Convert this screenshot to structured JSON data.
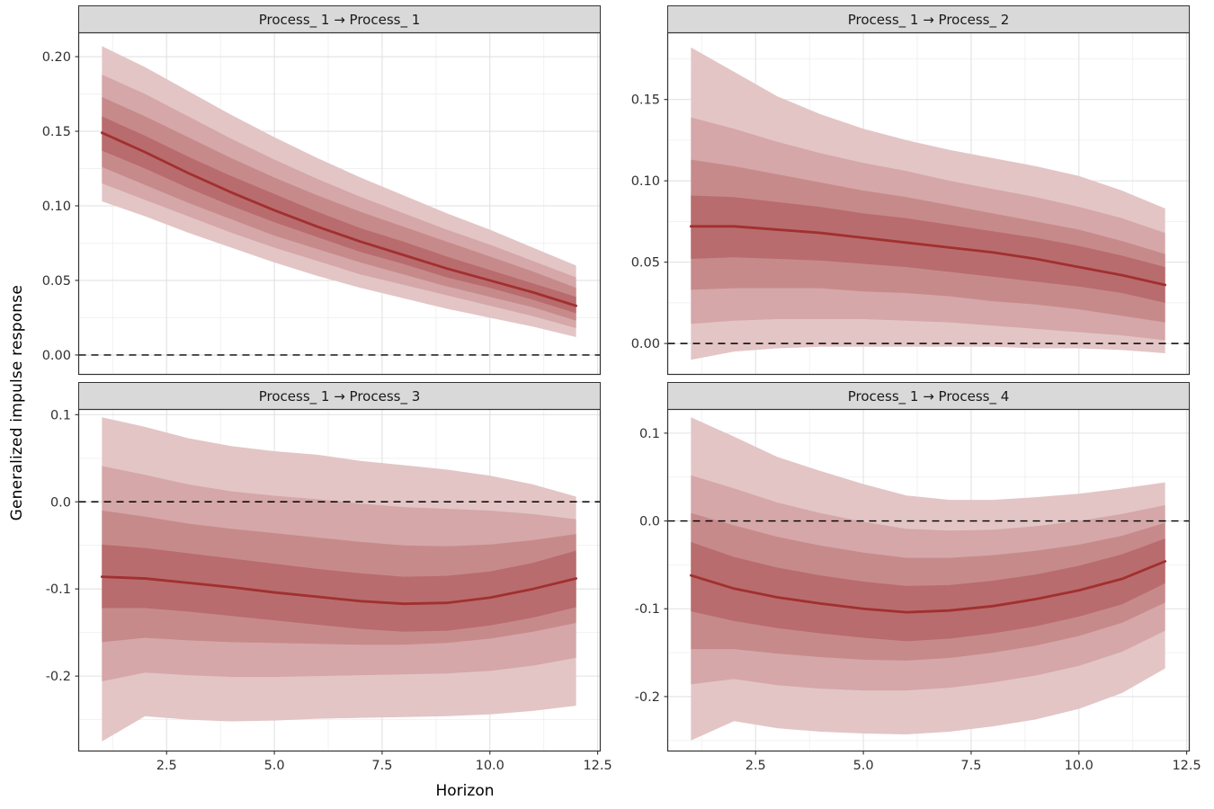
{
  "figure": {
    "xlabel": "Horizon",
    "ylabel": "Generalized impulse response",
    "xlim": [
      0.45,
      12.55
    ],
    "x_ticks": [
      2.5,
      5,
      7.5,
      10,
      12.5
    ],
    "x_tick_labels": [
      "2.5",
      "5.0",
      "7.5",
      "10.0",
      "12.5"
    ]
  },
  "colors": {
    "median_line": "#A13030",
    "bands": [
      "#E3C5C6",
      "#D5A7A8",
      "#C78A8B",
      "#B96C6D"
    ],
    "strip_bg": "#D9D9D9",
    "panel_border": "#333333",
    "grid_major": "#E2E2E2",
    "grid_minor": "#F0F0F0",
    "zero_line": "#000000",
    "tick_text": "#303030"
  },
  "chart_data": [
    {
      "type": "area",
      "title": "Process_ 1 → Process_ 1",
      "x": [
        1,
        2,
        3,
        4,
        5,
        6,
        7,
        8,
        9,
        10,
        11,
        12
      ],
      "median": [
        0.149,
        0.136,
        0.122,
        0.109,
        0.097,
        0.086,
        0.076,
        0.067,
        0.058,
        0.05,
        0.042,
        0.033
      ],
      "bands": [
        {
          "name": "outer",
          "lower": [
            0.103,
            0.093,
            0.082,
            0.072,
            0.062,
            0.053,
            0.045,
            0.038,
            0.031,
            0.025,
            0.019,
            0.012
          ],
          "upper": [
            0.207,
            0.193,
            0.177,
            0.161,
            0.146,
            0.132,
            0.119,
            0.107,
            0.095,
            0.084,
            0.072,
            0.06
          ]
        },
        {
          "name": "mid-outer",
          "lower": [
            0.115,
            0.104,
            0.093,
            0.082,
            0.072,
            0.063,
            0.054,
            0.047,
            0.04,
            0.033,
            0.026,
            0.018
          ],
          "upper": [
            0.188,
            0.175,
            0.16,
            0.145,
            0.131,
            0.118,
            0.106,
            0.095,
            0.084,
            0.074,
            0.063,
            0.052
          ]
        },
        {
          "name": "mid-inner",
          "lower": [
            0.126,
            0.114,
            0.102,
            0.091,
            0.08,
            0.071,
            0.062,
            0.054,
            0.046,
            0.039,
            0.032,
            0.023
          ],
          "upper": [
            0.173,
            0.16,
            0.146,
            0.132,
            0.119,
            0.107,
            0.096,
            0.086,
            0.076,
            0.066,
            0.056,
            0.045
          ]
        },
        {
          "name": "inner",
          "lower": [
            0.137,
            0.125,
            0.112,
            0.1,
            0.089,
            0.079,
            0.069,
            0.061,
            0.052,
            0.045,
            0.037,
            0.028
          ],
          "upper": [
            0.16,
            0.147,
            0.133,
            0.12,
            0.108,
            0.096,
            0.085,
            0.076,
            0.066,
            0.057,
            0.048,
            0.039
          ]
        }
      ],
      "ylim": [
        -0.013,
        0.216
      ],
      "y_ticks": [
        0,
        0.05,
        0.1,
        0.15,
        0.2
      ],
      "y_tick_labels": [
        "0.00",
        "0.05",
        "0.10",
        "0.15",
        "0.20"
      ],
      "zero_line": 0,
      "show_x_axis": false
    },
    {
      "type": "area",
      "title": "Process_ 1 → Process_ 2",
      "x": [
        1,
        2,
        3,
        4,
        5,
        6,
        7,
        8,
        9,
        10,
        11,
        12
      ],
      "median": [
        0.072,
        0.072,
        0.07,
        0.068,
        0.065,
        0.062,
        0.059,
        0.056,
        0.052,
        0.047,
        0.042,
        0.036
      ],
      "bands": [
        {
          "name": "outer",
          "lower": [
            -0.01,
            -0.005,
            -0.003,
            -0.002,
            -0.002,
            -0.002,
            -0.002,
            -0.002,
            -0.003,
            -0.003,
            -0.004,
            -0.006
          ],
          "upper": [
            0.182,
            0.167,
            0.152,
            0.141,
            0.132,
            0.125,
            0.119,
            0.114,
            0.109,
            0.103,
            0.094,
            0.083
          ]
        },
        {
          "name": "mid-outer",
          "lower": [
            0.012,
            0.014,
            0.015,
            0.015,
            0.015,
            0.014,
            0.013,
            0.011,
            0.009,
            0.007,
            0.005,
            0.002
          ],
          "upper": [
            0.139,
            0.132,
            0.124,
            0.117,
            0.111,
            0.106,
            0.1,
            0.095,
            0.09,
            0.084,
            0.077,
            0.068
          ]
        },
        {
          "name": "mid-inner",
          "lower": [
            0.033,
            0.034,
            0.034,
            0.034,
            0.032,
            0.031,
            0.029,
            0.026,
            0.024,
            0.021,
            0.017,
            0.013
          ],
          "upper": [
            0.113,
            0.109,
            0.104,
            0.099,
            0.094,
            0.09,
            0.085,
            0.08,
            0.075,
            0.07,
            0.063,
            0.055
          ]
        },
        {
          "name": "inner",
          "lower": [
            0.052,
            0.053,
            0.052,
            0.051,
            0.049,
            0.047,
            0.044,
            0.041,
            0.038,
            0.035,
            0.031,
            0.025
          ],
          "upper": [
            0.091,
            0.09,
            0.087,
            0.084,
            0.08,
            0.077,
            0.073,
            0.069,
            0.065,
            0.06,
            0.054,
            0.047
          ]
        }
      ],
      "ylim": [
        -0.019,
        0.191
      ],
      "y_ticks": [
        0,
        0.05,
        0.1,
        0.15
      ],
      "y_tick_labels": [
        "0.00",
        "0.05",
        "0.10",
        "0.15"
      ],
      "zero_line": 0,
      "show_x_axis": false
    },
    {
      "type": "area",
      "title": "Process_ 1 → Process_ 3",
      "x": [
        1,
        2,
        3,
        4,
        5,
        6,
        7,
        8,
        9,
        10,
        11,
        12
      ],
      "median": [
        -0.086,
        -0.088,
        -0.093,
        -0.098,
        -0.104,
        -0.109,
        -0.114,
        -0.117,
        -0.116,
        -0.11,
        -0.1,
        -0.088
      ],
      "bands": [
        {
          "name": "outer",
          "lower": [
            -0.275,
            -0.246,
            -0.25,
            -0.252,
            -0.251,
            -0.249,
            -0.248,
            -0.247,
            -0.246,
            -0.244,
            -0.24,
            -0.234
          ],
          "upper": [
            0.097,
            0.086,
            0.073,
            0.064,
            0.058,
            0.054,
            0.047,
            0.042,
            0.037,
            0.03,
            0.02,
            0.006
          ]
        },
        {
          "name": "mid-outer",
          "lower": [
            -0.206,
            -0.196,
            -0.199,
            -0.201,
            -0.201,
            -0.2,
            -0.199,
            -0.198,
            -0.197,
            -0.194,
            -0.188,
            -0.179
          ],
          "upper": [
            0.041,
            0.031,
            0.02,
            0.012,
            0.007,
            0.003,
            -0.002,
            -0.006,
            -0.008,
            -0.01,
            -0.014,
            -0.02
          ]
        },
        {
          "name": "mid-inner",
          "lower": [
            -0.161,
            -0.156,
            -0.159,
            -0.161,
            -0.162,
            -0.163,
            -0.164,
            -0.164,
            -0.162,
            -0.157,
            -0.149,
            -0.139
          ],
          "upper": [
            -0.01,
            -0.017,
            -0.025,
            -0.031,
            -0.036,
            -0.041,
            -0.046,
            -0.05,
            -0.051,
            -0.049,
            -0.044,
            -0.037
          ]
        },
        {
          "name": "inner",
          "lower": [
            -0.122,
            -0.122,
            -0.126,
            -0.131,
            -0.136,
            -0.141,
            -0.146,
            -0.149,
            -0.148,
            -0.142,
            -0.133,
            -0.121
          ],
          "upper": [
            -0.049,
            -0.053,
            -0.059,
            -0.065,
            -0.071,
            -0.077,
            -0.082,
            -0.086,
            -0.085,
            -0.08,
            -0.07,
            -0.056
          ]
        }
      ],
      "ylim": [
        -0.286,
        0.106
      ],
      "y_ticks": [
        -0.2,
        -0.1,
        0,
        0.1
      ],
      "y_tick_labels": [
        "-0.2",
        "-0.1",
        "0.0",
        "0.1"
      ],
      "zero_line": 0,
      "show_x_axis": true
    },
    {
      "type": "area",
      "title": "Process_ 1 → Process_ 4",
      "x": [
        1,
        2,
        3,
        4,
        5,
        6,
        7,
        8,
        9,
        10,
        11,
        12
      ],
      "median": [
        -0.062,
        -0.077,
        -0.087,
        -0.094,
        -0.1,
        -0.104,
        -0.102,
        -0.097,
        -0.089,
        -0.079,
        -0.066,
        -0.046
      ],
      "bands": [
        {
          "name": "outer",
          "lower": [
            -0.25,
            -0.228,
            -0.236,
            -0.24,
            -0.242,
            -0.243,
            -0.24,
            -0.234,
            -0.226,
            -0.214,
            -0.196,
            -0.168
          ],
          "upper": [
            0.118,
            0.096,
            0.073,
            0.057,
            0.042,
            0.029,
            0.024,
            0.024,
            0.027,
            0.031,
            0.037,
            0.044
          ]
        },
        {
          "name": "mid-outer",
          "lower": [
            -0.186,
            -0.18,
            -0.187,
            -0.191,
            -0.193,
            -0.193,
            -0.19,
            -0.184,
            -0.176,
            -0.165,
            -0.149,
            -0.125
          ],
          "upper": [
            0.052,
            0.037,
            0.021,
            0.009,
            -0.001,
            -0.009,
            -0.011,
            -0.01,
            -0.006,
            0.0,
            0.008,
            0.018
          ]
        },
        {
          "name": "mid-inner",
          "lower": [
            -0.146,
            -0.146,
            -0.151,
            -0.155,
            -0.158,
            -0.159,
            -0.156,
            -0.15,
            -0.142,
            -0.131,
            -0.116,
            -0.093
          ],
          "upper": [
            0.009,
            -0.005,
            -0.018,
            -0.028,
            -0.036,
            -0.042,
            -0.042,
            -0.039,
            -0.034,
            -0.027,
            -0.017,
            -0.002
          ]
        },
        {
          "name": "inner",
          "lower": [
            -0.103,
            -0.114,
            -0.122,
            -0.128,
            -0.133,
            -0.137,
            -0.134,
            -0.128,
            -0.12,
            -0.109,
            -0.095,
            -0.071
          ],
          "upper": [
            -0.024,
            -0.041,
            -0.053,
            -0.062,
            -0.069,
            -0.074,
            -0.073,
            -0.068,
            -0.061,
            -0.051,
            -0.038,
            -0.02
          ]
        }
      ],
      "ylim": [
        -0.262,
        0.127
      ],
      "y_ticks": [
        -0.2,
        -0.1,
        0,
        0.1
      ],
      "y_tick_labels": [
        "-0.2",
        "-0.1",
        "0.0",
        "0.1"
      ],
      "zero_line": 0,
      "show_x_axis": true
    }
  ]
}
